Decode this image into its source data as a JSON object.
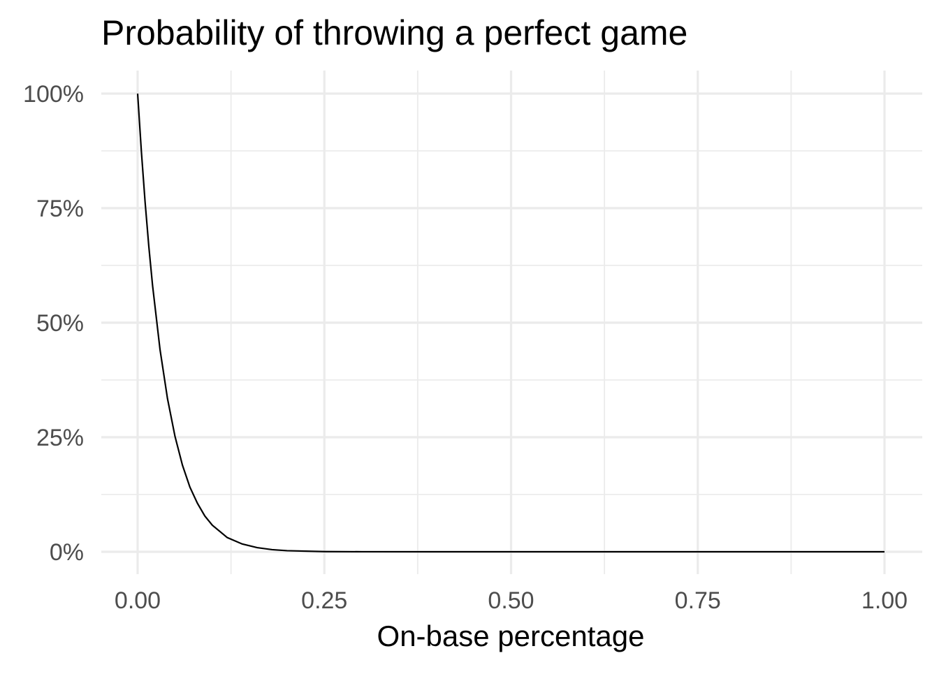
{
  "chart_data": {
    "type": "line",
    "title": "Probability of throwing a perfect game",
    "xlabel": "On-base percentage",
    "ylabel": "",
    "xlim": [
      0,
      1
    ],
    "ylim": [
      0,
      1
    ],
    "x_ticks": [
      0,
      0.25,
      0.5,
      0.75,
      1
    ],
    "x_tick_labels": [
      "0.00",
      "0.25",
      "0.50",
      "0.75",
      "1.00"
    ],
    "y_ticks": [
      0,
      0.25,
      0.5,
      0.75,
      1
    ],
    "y_tick_labels": [
      "0%",
      "25%",
      "50%",
      "75%",
      "100%"
    ],
    "grid": true,
    "legend": "none",
    "line_color": "#000000",
    "grid_color": "#ebebeb",
    "series": [
      {
        "x": [
          0,
          0.005,
          0.01,
          0.015,
          0.02,
          0.03,
          0.04,
          0.05,
          0.06,
          0.07,
          0.08,
          0.09,
          0.1,
          0.12,
          0.14,
          0.16,
          0.18,
          0.2,
          0.25,
          0.3,
          0.4,
          0.5,
          0.6,
          0.7,
          0.8,
          0.9,
          1.0
        ],
        "y": [
          1.0,
          0.874,
          0.763,
          0.666,
          0.581,
          0.441,
          0.334,
          0.252,
          0.189,
          0.141,
          0.106,
          0.078,
          0.058,
          0.031,
          0.017,
          0.009,
          0.0047,
          0.0024,
          0.0004,
          7e-05,
          0.0,
          0.0,
          0.0,
          0.0,
          0.0,
          0.0,
          0.0
        ]
      }
    ]
  }
}
